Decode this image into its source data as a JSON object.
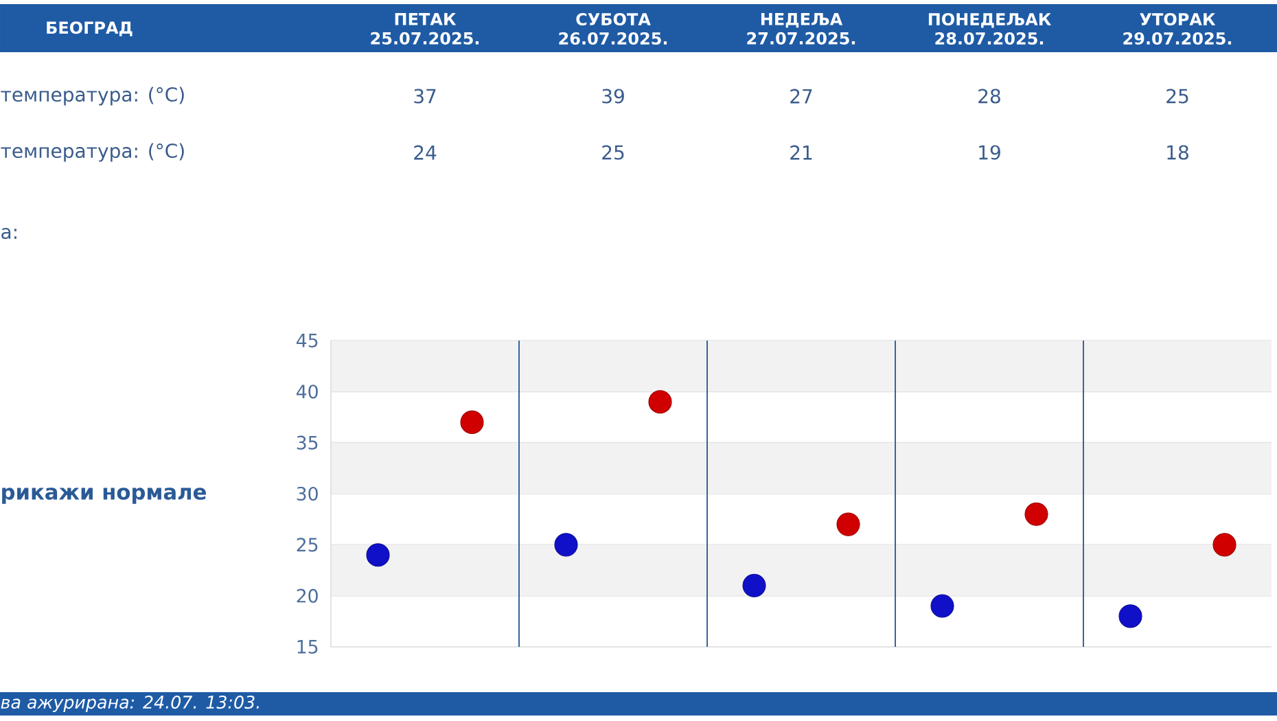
{
  "chart_data": {
    "type": "scatter",
    "title": "БЕОГРАД",
    "categories": [
      null,
      null,
      null,
      null,
      null
    ],
    "series": [
      {
        "color": "#1010c8",
        "values": [
          24,
          25,
          21,
          19,
          18
        ]
      },
      {
        "color": "#d00000",
        "values": [
          37,
          39,
          27,
          28,
          25
        ]
      }
    ],
    "ylim": [
      15,
      45
    ],
    "yticks": [
      15,
      20,
      25,
      30,
      35,
      40,
      45
    ],
    "grid": "y",
    "marker": "circle",
    "data_labels": true,
    "annotations": [
      "ПЕТАК 25.07.2025.",
      "СУБОТА 26.07.2025.",
      "НЕДЕЉА 27.07.2025.",
      "ПОНЕДЕЉАК 28.07.2025.",
      "УТОРАК 29.07.2025.",
      "температура: (°C)",
      "температура: (°C)",
      "а:",
      "рикажи нормале",
      "ва ажурирана:  24.07. 13:03."
    ]
  }
}
